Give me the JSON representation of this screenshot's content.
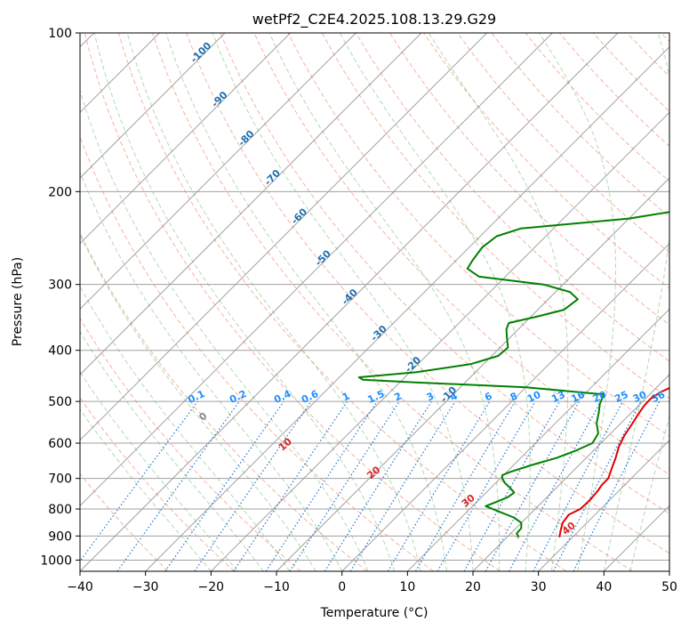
{
  "chart_data": {
    "type": "line",
    "title": "wetPf2_C2E4.2025.108.13.29.G29",
    "xlabel": "Temperature (°C)",
    "ylabel": "Pressure (hPa)",
    "xlim": [
      -40,
      50
    ],
    "ylim": [
      1050,
      100
    ],
    "y_scale": "log",
    "grid": true,
    "x_ticks": [
      "−40",
      "−30",
      "−20",
      "−10",
      "0",
      "10",
      "20",
      "30",
      "40",
      "50"
    ],
    "y_ticks": [
      "100",
      "200",
      "300",
      "400",
      "500",
      "600",
      "700",
      "800",
      "900",
      "1000"
    ],
    "series": [
      {
        "color": "#e00000",
        "pressure": [
          905,
          880,
          850,
          820,
          800,
          770,
          740,
          720,
          700,
          670,
          640,
          610,
          580,
          555,
          530,
          510,
          495,
          480,
          470,
          460,
          445,
          430,
          410,
          390,
          370,
          355,
          340,
          325,
          310,
          295,
          280,
          260,
          240,
          225,
          210,
          195,
          180,
          165,
          150,
          135,
          120,
          110,
          100
        ],
        "temperature": [
          28.0,
          27.2,
          26.3,
          26.0,
          26.9,
          27.0,
          26.8,
          26.5,
          26.5,
          25.5,
          24.5,
          23.3,
          22.4,
          21.9,
          21.3,
          20.9,
          20.8,
          21.3,
          22.2,
          22.5,
          22.0,
          21.6,
          21.2,
          20.8,
          19.7,
          18.7,
          17.3,
          15.9,
          14.5,
          13.6,
          13.0,
          11.2,
          9.3,
          7.8,
          6.6,
          5.8,
          4.9,
          3.5,
          2.3,
          0.9,
          -0.4,
          -1.2,
          -2.0
        ]
      },
      {
        "color": "#008000",
        "pressure": [
          905,
          890,
          870,
          850,
          830,
          810,
          790,
          775,
          760,
          745,
          730,
          715,
          700,
          690,
          680,
          660,
          640,
          620,
          600,
          575,
          550,
          525,
          505,
          485,
          470,
          460,
          455,
          450,
          440,
          425,
          410,
          395,
          380,
          365,
          355,
          345,
          335,
          320,
          310,
          300,
          290,
          280,
          270,
          255,
          243,
          235,
          225,
          213,
          200,
          185,
          170,
          160,
          145,
          135,
          120,
          110,
          100
        ],
        "temperature": [
          21.8,
          20.9,
          20.8,
          20.0,
          18.0,
          15.0,
          12.0,
          13.0,
          14.0,
          14.3,
          13.0,
          11.5,
          10.3,
          9.8,
          10.6,
          12.8,
          15.5,
          17.3,
          18.7,
          18.1,
          16.3,
          15.0,
          13.8,
          13.0,
          0.0,
          -18.0,
          -26.0,
          -27.0,
          -19.0,
          -12.0,
          -9.0,
          -8.8,
          -10.3,
          -11.8,
          -12.4,
          -9.0,
          -6.0,
          -5.5,
          -7.8,
          -13.0,
          -24.0,
          -27.0,
          -27.5,
          -28.0,
          -27.5,
          -25.0,
          -10.0,
          0.0,
          0.5,
          -3.0,
          -6.0,
          -8.5,
          -2.5,
          -1.5,
          -2.5,
          -2.5,
          -1.0
        ]
      }
    ],
    "isotherm_labels": [
      "-100",
      "-90",
      "-80",
      "-70",
      "-60",
      "-50",
      "-40",
      "-30",
      "-20",
      "-10"
    ],
    "mixing_ratio_labels": [
      "0.1",
      "0.2",
      "0.4",
      "0.6",
      "1",
      "1.5",
      "2",
      "3",
      "4",
      "6",
      "8",
      "10",
      "13",
      "16",
      "20",
      "25",
      "30",
      "36"
    ],
    "dry_adiabat_labels": [
      "0",
      "10",
      "20",
      "30",
      "40"
    ]
  },
  "colors": {
    "temperature_line": "#e00000",
    "dewpoint_line": "#008000",
    "isotherm": "#7a7a7a",
    "isotherm_label": "#1f6fb0",
    "dry_adiabat": "#f08060",
    "moist_adiabat": "#80c080",
    "mixing_ratio": "#1f77d0",
    "mixing_label": "#1e90ff",
    "adiabat_label": "#d62728"
  }
}
